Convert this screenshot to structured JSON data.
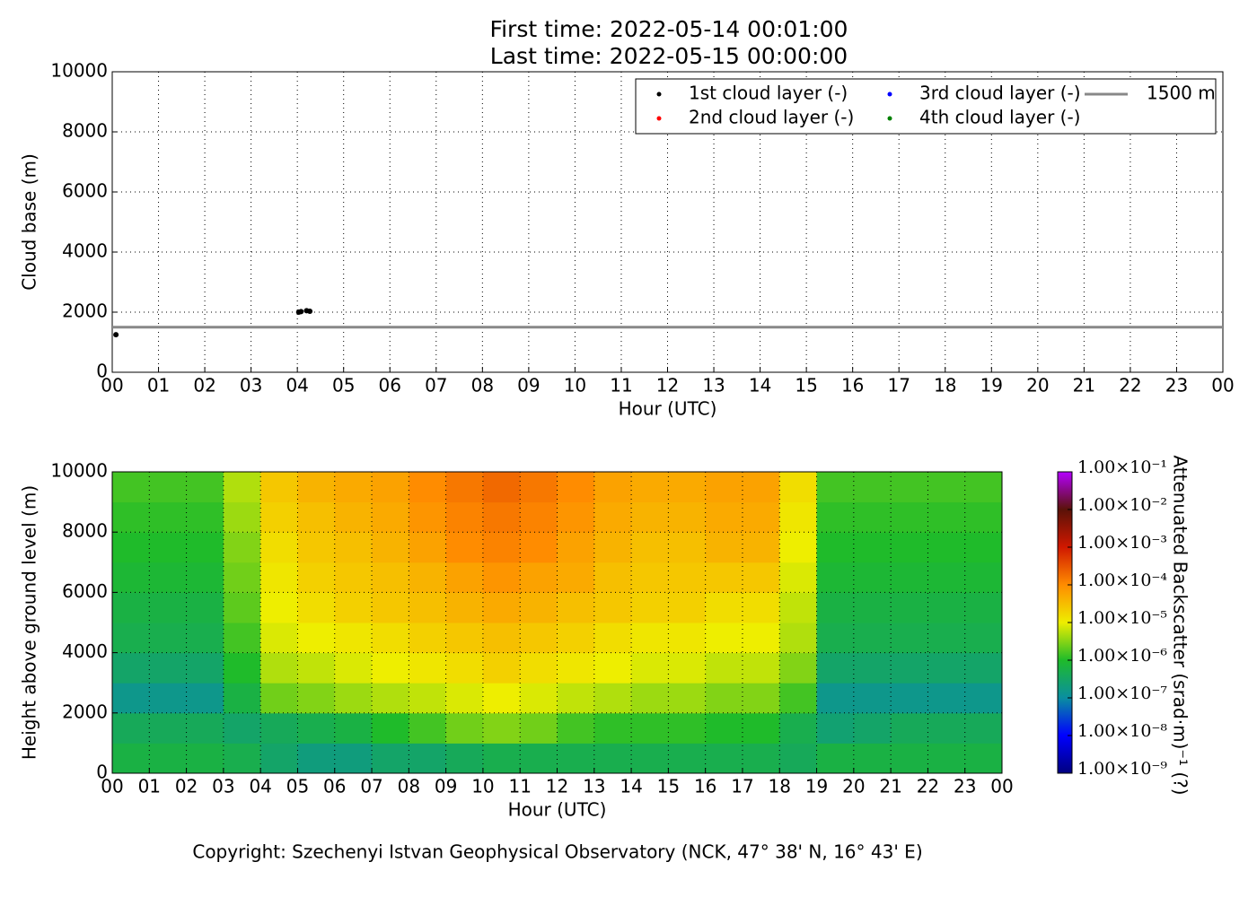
{
  "chart_data": [
    {
      "type": "scatter",
      "title": [
        "First time: 2022-05-14 00:01:00",
        "Last time: 2022-05-15 00:00:00"
      ],
      "x_label": "Hour (UTC)",
      "y_label": "Cloud base (m)",
      "xlim": [
        0,
        24
      ],
      "ylim": [
        0,
        10000
      ],
      "xticks": [
        {
          "value": 0,
          "label": "00"
        },
        {
          "value": 1,
          "label": "01"
        },
        {
          "value": 2,
          "label": "02"
        },
        {
          "value": 3,
          "label": "03"
        },
        {
          "value": 4,
          "label": "04"
        },
        {
          "value": 5,
          "label": "05"
        },
        {
          "value": 6,
          "label": "06"
        },
        {
          "value": 7,
          "label": "07"
        },
        {
          "value": 8,
          "label": "08"
        },
        {
          "value": 9,
          "label": "09"
        },
        {
          "value": 10,
          "label": "10"
        },
        {
          "value": 11,
          "label": "11"
        },
        {
          "value": 12,
          "label": "12"
        },
        {
          "value": 13,
          "label": "13"
        },
        {
          "value": 14,
          "label": "14"
        },
        {
          "value": 15,
          "label": "15"
        },
        {
          "value": 16,
          "label": "16"
        },
        {
          "value": 17,
          "label": "17"
        },
        {
          "value": 18,
          "label": "18"
        },
        {
          "value": 19,
          "label": "19"
        },
        {
          "value": 20,
          "label": "20"
        },
        {
          "value": 21,
          "label": "21"
        },
        {
          "value": 22,
          "label": "22"
        },
        {
          "value": 23,
          "label": "23"
        },
        {
          "value": 24,
          "label": "00"
        }
      ],
      "yticks": [
        0,
        2000,
        4000,
        6000,
        8000,
        10000
      ],
      "grid": true,
      "legend": "upper right",
      "series": [
        {
          "name": "1st cloud layer (-)",
          "color": "#000000",
          "x": [
            0.08,
            4.03,
            4.08,
            4.2,
            4.27
          ],
          "values": [
            1250,
            2000,
            2020,
            2050,
            2030
          ]
        },
        {
          "name": "2nd cloud layer (-)",
          "color": "#ff0000",
          "x": [],
          "values": []
        },
        {
          "name": "3rd cloud layer (-)",
          "color": "#0000ff",
          "x": [],
          "values": []
        },
        {
          "name": "4th cloud layer (-)",
          "color": "#008000",
          "x": [],
          "values": []
        }
      ],
      "hline": {
        "name": "1500 m",
        "value": 1500,
        "color": "#888888"
      }
    },
    {
      "type": "heatmap",
      "x_label": "Hour (UTC)",
      "y_label": "Height above ground level (m)",
      "xlim": [
        0,
        24
      ],
      "ylim": [
        0,
        10000
      ],
      "xticks": [
        {
          "value": 0,
          "label": "00"
        },
        {
          "value": 1,
          "label": "01"
        },
        {
          "value": 2,
          "label": "02"
        },
        {
          "value": 3,
          "label": "03"
        },
        {
          "value": 4,
          "label": "04"
        },
        {
          "value": 5,
          "label": "05"
        },
        {
          "value": 6,
          "label": "06"
        },
        {
          "value": 7,
          "label": "07"
        },
        {
          "value": 8,
          "label": "08"
        },
        {
          "value": 9,
          "label": "09"
        },
        {
          "value": 10,
          "label": "10"
        },
        {
          "value": 11,
          "label": "11"
        },
        {
          "value": 12,
          "label": "12"
        },
        {
          "value": 13,
          "label": "13"
        },
        {
          "value": 14,
          "label": "14"
        },
        {
          "value": 15,
          "label": "15"
        },
        {
          "value": 16,
          "label": "16"
        },
        {
          "value": 17,
          "label": "17"
        },
        {
          "value": 18,
          "label": "18"
        },
        {
          "value": 19,
          "label": "19"
        },
        {
          "value": 20,
          "label": "20"
        },
        {
          "value": 21,
          "label": "21"
        },
        {
          "value": 22,
          "label": "22"
        },
        {
          "value": 23,
          "label": "23"
        },
        {
          "value": 24,
          "label": "00"
        }
      ],
      "yticks": [
        0,
        2000,
        4000,
        6000,
        8000,
        10000
      ],
      "grid": true,
      "xbins": [
        0,
        1,
        2,
        3,
        4,
        5,
        6,
        7,
        8,
        9,
        10,
        11,
        12,
        13,
        14,
        15,
        16,
        17,
        18,
        19,
        20,
        21,
        22,
        23,
        24
      ],
      "ybins": [
        0,
        1000,
        2000,
        3000,
        4000,
        5000,
        6000,
        7000,
        8000,
        9000,
        10000
      ],
      "z": [
        [
          6e-07,
          6e-07,
          6e-07,
          5e-07,
          3e-07,
          2e-07,
          2e-07,
          3e-07,
          3e-07,
          4e-07,
          5e-07,
          5e-07,
          5e-07,
          5e-07,
          5e-07,
          5e-07,
          5e-07,
          5e-07,
          4e-07,
          6e-07,
          6e-07,
          6e-07,
          6e-07,
          6e-07
        ],
        [
          4e-07,
          4e-07,
          4e-07,
          3e-07,
          4e-07,
          5e-07,
          6e-07,
          1e-06,
          1.5e-06,
          2.5e-06,
          3e-06,
          2.5e-06,
          1.5e-06,
          1.2e-06,
          1.2e-06,
          1.2e-06,
          1e-06,
          1e-06,
          5e-07,
          2.5e-07,
          3e-07,
          4e-07,
          4e-07,
          4e-07
        ],
        [
          1.5e-07,
          1.5e-07,
          1.5e-07,
          6e-07,
          2.5e-06,
          3e-06,
          4e-06,
          5e-06,
          6e-06,
          8e-06,
          1e-05,
          8e-06,
          6e-06,
          5e-06,
          4e-06,
          4e-06,
          3e-06,
          3e-06,
          1.5e-06,
          1.5e-07,
          1.5e-07,
          1.5e-07,
          1.5e-07,
          1.5e-07
        ],
        [
          3e-07,
          3e-07,
          3e-07,
          1e-06,
          5e-06,
          6e-06,
          8e-06,
          1e-05,
          1.2e-05,
          1.5e-05,
          2e-05,
          1.5e-05,
          1.2e-05,
          1e-05,
          8e-06,
          8e-06,
          6e-06,
          6e-06,
          3e-06,
          3e-07,
          3e-07,
          3e-07,
          3e-07,
          3e-07
        ],
        [
          5e-07,
          5e-07,
          5e-07,
          1.5e-06,
          8e-06,
          1e-05,
          1.2e-05,
          1.5e-05,
          2e-05,
          2.5e-05,
          3e-05,
          2.5e-05,
          2e-05,
          1.5e-05,
          1.2e-05,
          1.2e-05,
          1e-05,
          1e-05,
          5e-06,
          5e-07,
          5e-07,
          5e-07,
          5e-07,
          5e-07
        ],
        [
          6e-07,
          6e-07,
          6e-07,
          2e-06,
          1e-05,
          1.5e-05,
          2e-05,
          2.5e-05,
          3e-05,
          4e-05,
          5e-05,
          4e-05,
          3e-05,
          2.5e-05,
          2e-05,
          2e-05,
          1.5e-05,
          1.5e-05,
          6e-06,
          6e-07,
          6e-07,
          6e-07,
          6e-07,
          6e-07
        ],
        [
          8e-07,
          8e-07,
          8e-07,
          2.5e-06,
          1.2e-05,
          2e-05,
          2.5e-05,
          3e-05,
          4e-05,
          6e-05,
          8e-05,
          6e-05,
          5e-05,
          3e-05,
          2.5e-05,
          2.5e-05,
          2.5e-05,
          2.5e-05,
          8e-06,
          8e-07,
          8e-07,
          8e-07,
          8e-07,
          8e-07
        ],
        [
          1e-06,
          1e-06,
          1e-06,
          3e-06,
          1.5e-05,
          2.5e-05,
          3e-05,
          4e-05,
          6e-05,
          0.0001,
          0.00012,
          0.0001,
          6e-05,
          4e-05,
          3e-05,
          3e-05,
          4e-05,
          4e-05,
          1e-05,
          1e-06,
          1e-06,
          1e-06,
          1e-06,
          1e-06
        ],
        [
          1.2e-06,
          1.2e-06,
          1.2e-06,
          4e-06,
          2e-05,
          3e-05,
          4e-05,
          5e-05,
          8e-05,
          0.00012,
          0.00015,
          0.00012,
          8e-05,
          5e-05,
          4e-05,
          4e-05,
          5e-05,
          5e-05,
          1.2e-05,
          1.2e-06,
          1.2e-06,
          1.2e-06,
          1.2e-06,
          1.2e-06
        ],
        [
          1.5e-06,
          1.5e-06,
          1.5e-06,
          5e-06,
          2.5e-05,
          4e-05,
          5e-05,
          6e-05,
          0.0001,
          0.00015,
          0.0002,
          0.00015,
          0.0001,
          6e-05,
          5e-05,
          5e-05,
          6e-05,
          6e-05,
          1.5e-05,
          1.5e-06,
          1.5e-06,
          1.5e-06,
          1.5e-06,
          1.5e-06
        ]
      ],
      "colorbar": {
        "label": "Attenuated Backscatter (srad·m)⁻¹ (?)",
        "log": true,
        "lim": [
          1e-09,
          0.1
        ],
        "ticks": [
          {
            "value": 1e-09,
            "label": "1.00×10⁻⁹"
          },
          {
            "value": 1e-08,
            "label": "1.00×10⁻⁸"
          },
          {
            "value": 1e-07,
            "label": "1.00×10⁻⁷"
          },
          {
            "value": 1e-06,
            "label": "1.00×10⁻⁶"
          },
          {
            "value": 1e-05,
            "label": "1.00×10⁻⁵"
          },
          {
            "value": 0.0001,
            "label": "1.00×10⁻⁴"
          },
          {
            "value": 0.001,
            "label": "1.00×10⁻³"
          },
          {
            "value": 0.01,
            "label": "1.00×10⁻²"
          },
          {
            "value": 0.1,
            "label": "1.00×10⁻¹"
          }
        ],
        "colors": [
          "#00007f",
          "#0000ff",
          "#0a8fa0",
          "#1fbb2a",
          "#eeee00",
          "#ff8c00",
          "#d01800",
          "#5a1208",
          "#b400ff"
        ]
      }
    }
  ],
  "footer": "Copyright: Szechenyi Istvan Geophysical Observatory (NCK, 47° 38' N, 16° 43' E)"
}
